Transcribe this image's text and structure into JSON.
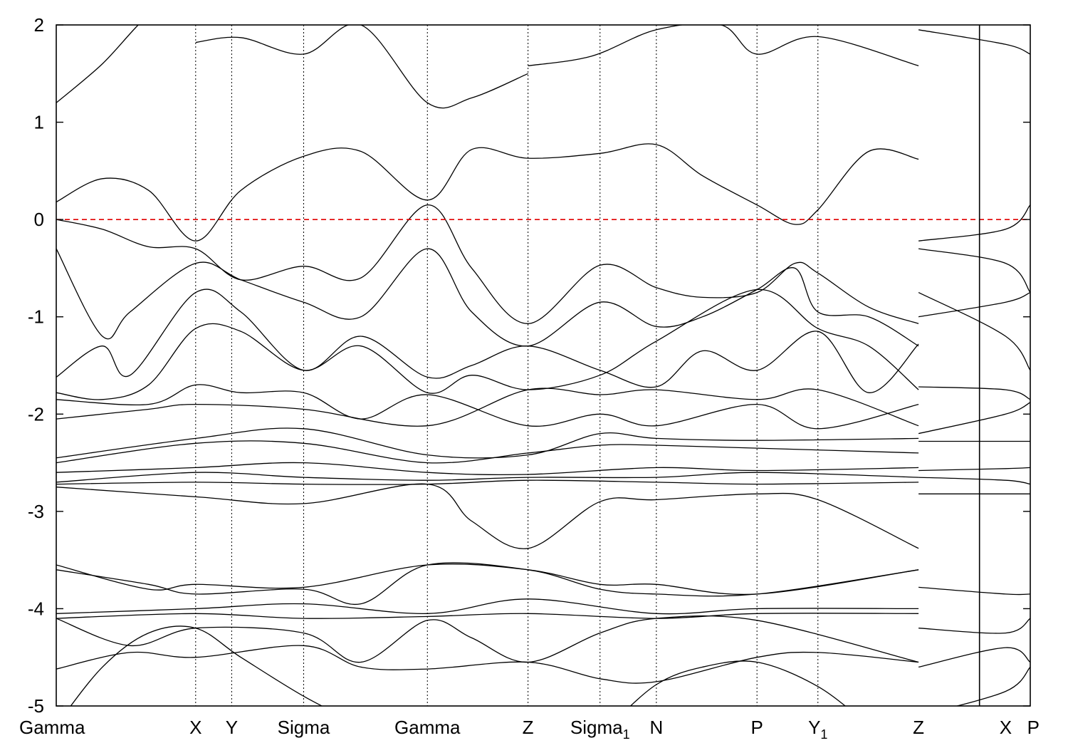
{
  "chart_data": {
    "type": "line",
    "title": "",
    "xlabel": "",
    "ylabel": "",
    "ylim": [
      -5,
      2
    ],
    "yticks": [
      2,
      1,
      0,
      -1,
      -2,
      -3,
      -4,
      -5
    ],
    "ytick_labels": [
      "2",
      "1",
      "0",
      "-1",
      "-2",
      "-3",
      "-4",
      "-5"
    ],
    "fermi_level": 0,
    "fermi_color": "#e00000",
    "kpath": {
      "segments": [
        {
          "from": "Gamma",
          "to": "Sigma_1",
          "x0": 0.0,
          "x1": 1.0
        },
        {
          "from": "X",
          "to": "P",
          "x0": 1.0,
          "x1": 1.055
        }
      ],
      "points": [
        {
          "label": "Gamma",
          "x": 0.0
        },
        {
          "label": "X",
          "x": 0.151
        },
        {
          "label": "Y",
          "x": 0.19
        },
        {
          "label": "Sigma",
          "x": 0.268
        },
        {
          "label": "Gamma",
          "x": 0.402
        },
        {
          "label": "Z",
          "x": 0.511
        },
        {
          "label": "Sigma",
          "sub": "1",
          "x": 0.589
        },
        {
          "label": "N",
          "x": 0.65
        },
        {
          "label": "P",
          "x": 0.759
        },
        {
          "label": "Y",
          "sub": "1",
          "x": 0.825
        },
        {
          "label": "Z",
          "x": 0.934
        },
        {
          "label": "X",
          "x": 0.968
        },
        {
          "label": "P",
          "x": 1.0
        }
      ]
    },
    "series": [
      {
        "x": [
          0,
          0.05,
          0.1,
          0.151
        ],
        "values": [
          1.2,
          1.6,
          2.1,
          2.4
        ]
      },
      {
        "x": [
          0.151,
          0.2,
          0.268,
          0.33,
          0.402,
          0.45,
          0.511
        ],
        "values": [
          1.82,
          1.87,
          1.7,
          2.0,
          1.2,
          1.25,
          1.5
        ]
      },
      {
        "x": [
          0.511,
          0.58,
          0.65,
          0.72,
          0.759,
          0.825,
          0.934
        ],
        "values": [
          1.58,
          1.68,
          1.95,
          2.0,
          1.7,
          1.88,
          1.58
        ]
      },
      {
        "x": [
          0.934,
          0.968,
          1.0
        ],
        "values": [
          1.95,
          1.8,
          1.7
        ]
      },
      {
        "x": [
          0,
          0.05,
          0.1,
          0.151,
          0.2,
          0.268,
          0.33,
          0.402,
          0.45,
          0.511,
          0.589,
          0.65,
          0.7,
          0.759,
          0.8,
          0.825,
          0.88,
          0.934
        ],
        "values": [
          0.18,
          0.42,
          0.3,
          -0.22,
          0.3,
          0.65,
          0.7,
          0.2,
          0.72,
          0.63,
          0.68,
          0.77,
          0.45,
          0.15,
          -0.05,
          0.1,
          0.7,
          0.62
        ]
      },
      {
        "x": [
          0,
          0.05,
          0.1,
          0.151,
          0.2,
          0.268,
          0.33,
          0.402,
          0.45,
          0.511,
          0.589,
          0.65,
          0.7,
          0.759,
          0.8,
          0.825,
          0.88,
          0.934
        ],
        "values": [
          0.0,
          -0.1,
          -0.28,
          -0.3,
          -0.62,
          -0.48,
          -0.6,
          0.15,
          -0.5,
          -1.07,
          -0.47,
          -0.7,
          -0.8,
          -0.75,
          -0.45,
          -0.55,
          -0.9,
          -1.07
        ]
      },
      {
        "x": [
          0,
          0.05,
          0.08,
          0.151,
          0.2,
          0.268,
          0.33,
          0.402,
          0.45,
          0.511,
          0.589,
          0.65,
          0.7,
          0.759,
          0.8,
          0.825,
          0.88,
          0.934
        ],
        "values": [
          -0.3,
          -1.2,
          -0.95,
          -0.45,
          -0.62,
          -0.85,
          -1.0,
          -0.3,
          -0.95,
          -1.3,
          -0.85,
          -1.1,
          -1.0,
          -0.72,
          -0.5,
          -0.95,
          -1.0,
          -1.3
        ]
      },
      {
        "x": [
          0,
          0.05,
          0.08,
          0.151,
          0.2,
          0.268,
          0.33,
          0.402,
          0.45,
          0.511,
          0.589,
          0.65,
          0.7,
          0.759,
          0.825,
          0.88,
          0.934
        ],
        "values": [
          -1.62,
          -1.3,
          -1.6,
          -0.75,
          -0.95,
          -1.55,
          -1.2,
          -1.62,
          -1.5,
          -1.3,
          -1.55,
          -1.72,
          -1.35,
          -1.55,
          -1.15,
          -1.78,
          -1.28
        ]
      },
      {
        "x": [
          0,
          0.05,
          0.1,
          0.151,
          0.2,
          0.268,
          0.33,
          0.402,
          0.45,
          0.511,
          0.589,
          0.65,
          0.759,
          0.825,
          0.88,
          0.934
        ],
        "values": [
          -1.78,
          -1.85,
          -1.7,
          -1.12,
          -1.15,
          -1.55,
          -1.3,
          -1.78,
          -1.6,
          -1.75,
          -1.6,
          -1.25,
          -0.72,
          -1.12,
          -1.3,
          -1.75
        ]
      },
      {
        "x": [
          0,
          0.1,
          0.151,
          0.2,
          0.268,
          0.33,
          0.402,
          0.511,
          0.589,
          0.65,
          0.759,
          0.825,
          0.934
        ],
        "values": [
          -1.85,
          -1.9,
          -1.7,
          -1.78,
          -1.78,
          -2.05,
          -1.8,
          -2.12,
          -2.0,
          -2.12,
          -1.9,
          -2.15,
          -1.9
        ]
      },
      {
        "x": [
          0,
          0.1,
          0.151,
          0.268,
          0.402,
          0.511,
          0.589,
          0.65,
          0.759,
          0.825,
          0.934
        ],
        "values": [
          -2.05,
          -1.95,
          -1.9,
          -1.95,
          -2.12,
          -1.75,
          -1.8,
          -1.75,
          -1.85,
          -1.75,
          -2.12
        ]
      },
      {
        "x": [
          0,
          0.151,
          0.268,
          0.402,
          0.511,
          0.589,
          0.65,
          0.759,
          0.934
        ],
        "values": [
          -2.45,
          -2.25,
          -2.15,
          -2.42,
          -2.42,
          -2.2,
          -2.25,
          -2.27,
          -2.25
        ]
      },
      {
        "x": [
          0,
          0.151,
          0.268,
          0.402,
          0.511,
          0.589,
          0.65,
          0.759,
          0.934
        ],
        "values": [
          -2.5,
          -2.3,
          -2.3,
          -2.5,
          -2.4,
          -2.32,
          -2.32,
          -2.35,
          -2.4
        ]
      },
      {
        "x": [
          0,
          0.151,
          0.268,
          0.402,
          0.511,
          0.65,
          0.759,
          0.934
        ],
        "values": [
          -2.6,
          -2.55,
          -2.5,
          -2.6,
          -2.62,
          -2.55,
          -2.58,
          -2.55
        ]
      },
      {
        "x": [
          0,
          0.151,
          0.268,
          0.402,
          0.511,
          0.65,
          0.759,
          0.934
        ],
        "values": [
          -2.7,
          -2.6,
          -2.65,
          -2.68,
          -2.65,
          -2.65,
          -2.6,
          -2.65
        ]
      },
      {
        "x": [
          0,
          0.151,
          0.268,
          0.402,
          0.511,
          0.65,
          0.759,
          0.934
        ],
        "values": [
          -2.72,
          -2.7,
          -2.72,
          -2.72,
          -2.68,
          -2.7,
          -2.72,
          -2.7
        ]
      },
      {
        "x": [
          0,
          0.151,
          0.268,
          0.402,
          0.45,
          0.511,
          0.589,
          0.65,
          0.759,
          0.825,
          0.934
        ],
        "values": [
          -2.75,
          -2.85,
          -2.92,
          -2.72,
          -3.1,
          -3.38,
          -2.9,
          -2.88,
          -2.82,
          -2.88,
          -3.38
        ]
      },
      {
        "x": [
          0,
          0.1,
          0.151,
          0.268,
          0.402,
          0.511,
          0.589,
          0.65,
          0.759,
          0.934
        ],
        "values": [
          -3.55,
          -3.8,
          -3.75,
          -3.78,
          -3.55,
          -3.6,
          -3.75,
          -3.75,
          -3.85,
          -3.6
        ]
      },
      {
        "x": [
          0,
          0.1,
          0.151,
          0.268,
          0.33,
          0.402,
          0.511,
          0.589,
          0.65,
          0.759,
          0.934
        ],
        "values": [
          -3.6,
          -3.75,
          -3.85,
          -3.8,
          -3.95,
          -3.55,
          -3.6,
          -3.8,
          -3.85,
          -3.85,
          -3.6
        ]
      },
      {
        "x": [
          0,
          0.151,
          0.268,
          0.402,
          0.511,
          0.65,
          0.759,
          0.934
        ],
        "values": [
          -4.05,
          -4.0,
          -3.95,
          -4.05,
          -3.9,
          -4.05,
          -4.0,
          -4.0
        ]
      },
      {
        "x": [
          0,
          0.151,
          0.268,
          0.402,
          0.511,
          0.65,
          0.759,
          0.934
        ],
        "values": [
          -4.1,
          -4.05,
          -4.1,
          -4.08,
          -4.05,
          -4.1,
          -4.05,
          -4.05
        ]
      },
      {
        "x": [
          0,
          0.08,
          0.151,
          0.268,
          0.33,
          0.402,
          0.45,
          0.511,
          0.589,
          0.65,
          0.759,
          0.934
        ],
        "values": [
          -4.1,
          -4.38,
          -4.2,
          -4.25,
          -4.55,
          -4.12,
          -4.3,
          -4.55,
          -4.25,
          -4.1,
          -4.12,
          -4.55
        ]
      },
      {
        "x": [
          0,
          0.08,
          0.151,
          0.268,
          0.33,
          0.402,
          0.511,
          0.589,
          0.65,
          0.759,
          0.825,
          0.934
        ],
        "values": [
          -4.62,
          -4.45,
          -4.5,
          -4.38,
          -4.6,
          -4.62,
          -4.55,
          -4.72,
          -4.75,
          -4.5,
          -4.45,
          -4.55
        ]
      },
      {
        "x": [
          0,
          0.05,
          0.1,
          0.151,
          0.2,
          0.268,
          0.33
        ],
        "values": [
          -5.2,
          -4.6,
          -4.25,
          -4.2,
          -4.5,
          -4.9,
          -5.2
        ]
      },
      {
        "x": [
          0.6,
          0.65,
          0.7,
          0.759,
          0.825,
          0.88
        ],
        "values": [
          -5.2,
          -4.78,
          -4.6,
          -4.55,
          -4.8,
          -5.2
        ]
      },
      {
        "x": [
          0.934,
          0.968,
          1.0
        ],
        "values": [
          -0.3,
          -0.45,
          -0.75
        ]
      },
      {
        "x": [
          0.934,
          0.968,
          1.0
        ],
        "values": [
          -0.22,
          -0.1,
          0.15
        ]
      },
      {
        "x": [
          0.934,
          0.968,
          1.0
        ],
        "values": [
          -1.0,
          -0.85,
          -0.75
        ]
      },
      {
        "x": [
          0.934,
          0.968,
          1.0
        ],
        "values": [
          -0.75,
          -1.2,
          -1.55
        ]
      },
      {
        "x": [
          0.934,
          0.968,
          1.0
        ],
        "values": [
          -1.72,
          -1.75,
          -1.85
        ]
      },
      {
        "x": [
          0.934,
          0.968,
          1.0
        ],
        "values": [
          -2.2,
          -2.0,
          -1.88
        ]
      },
      {
        "x": [
          0.934,
          0.968,
          1.0
        ],
        "values": [
          -2.28,
          -2.28,
          -2.28
        ]
      },
      {
        "x": [
          0.934,
          0.968,
          1.0
        ],
        "values": [
          -2.58,
          -2.56,
          -2.55
        ]
      },
      {
        "x": [
          0.934,
          0.968,
          1.0
        ],
        "values": [
          -2.65,
          -2.68,
          -2.72
        ]
      },
      {
        "x": [
          0.934,
          0.968,
          1.0
        ],
        "values": [
          -2.82,
          -2.82,
          -2.82
        ]
      },
      {
        "x": [
          0.934,
          0.968,
          1.0
        ],
        "values": [
          -3.78,
          -3.85,
          -3.85
        ]
      },
      {
        "x": [
          0.934,
          0.968,
          1.0
        ],
        "values": [
          -4.2,
          -4.25,
          -4.1
        ]
      },
      {
        "x": [
          0.934,
          0.968,
          1.0
        ],
        "values": [
          -4.6,
          -4.4,
          -4.55
        ]
      },
      {
        "x": [
          0.934,
          0.968,
          1.0
        ],
        "values": [
          -5.1,
          -4.85,
          -4.6
        ]
      }
    ]
  }
}
